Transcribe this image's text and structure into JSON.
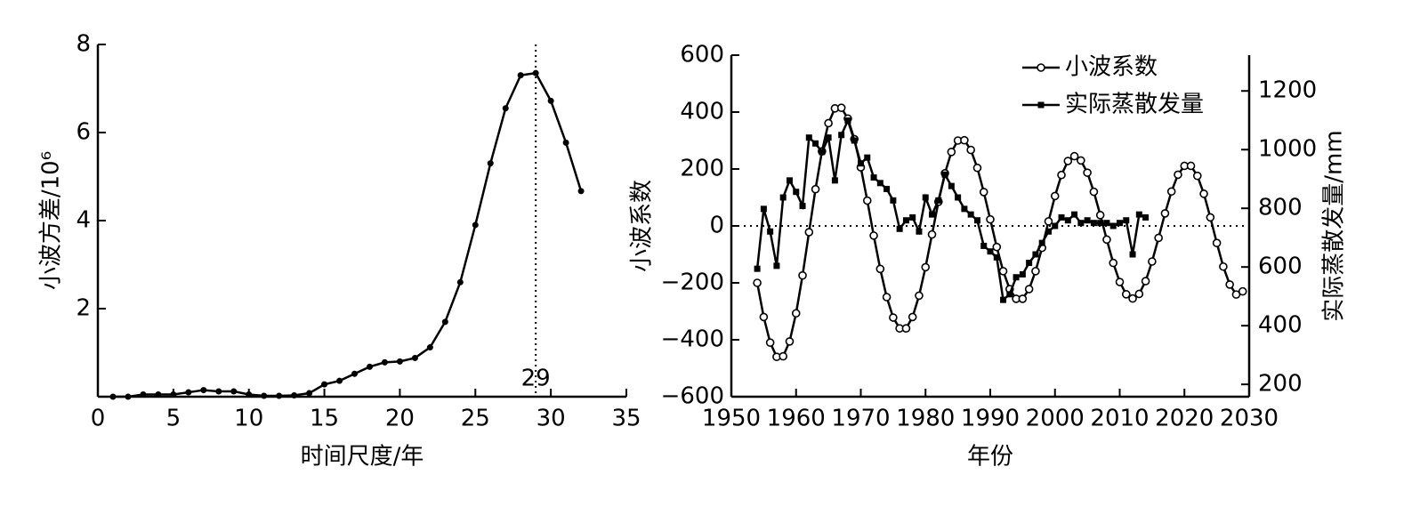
{
  "chart_data": [
    {
      "type": "line",
      "xlabel": "时间尺度/年",
      "ylabel": "小波方差/10⁶",
      "x": [
        1,
        2,
        3,
        4,
        5,
        6,
        7,
        8,
        9,
        10,
        11,
        12,
        13,
        14,
        15,
        16,
        17,
        18,
        19,
        20,
        21,
        22,
        23,
        24,
        25,
        26,
        27,
        28,
        29,
        30,
        31,
        32
      ],
      "series": [
        {
          "color": "#000000",
          "marker": "dot",
          "values": [
            0.0,
            0.0,
            0.05,
            0.05,
            0.05,
            0.1,
            0.15,
            0.12,
            0.12,
            0.05,
            0.02,
            0.02,
            0.03,
            0.08,
            0.28,
            0.36,
            0.52,
            0.68,
            0.78,
            0.8,
            0.88,
            1.12,
            1.7,
            2.6,
            3.9,
            5.3,
            6.55,
            7.3,
            7.35,
            6.72,
            5.77,
            4.67
          ]
        }
      ],
      "xlim": [
        0,
        35
      ],
      "xticks": [
        0,
        5,
        10,
        15,
        20,
        25,
        30,
        35
      ],
      "ylim": [
        0,
        8
      ],
      "yticks": [
        2,
        4,
        6,
        8
      ],
      "vline": 29,
      "vline_label": "29"
    },
    {
      "type": "line",
      "xlabel": "年份",
      "ylabel": "小波系数",
      "y2label": "实际蒸散发量/mm",
      "x": [
        1954,
        1955,
        1956,
        1957,
        1958,
        1959,
        1960,
        1961,
        1962,
        1963,
        1964,
        1965,
        1966,
        1967,
        1968,
        1969,
        1970,
        1971,
        1972,
        1973,
        1974,
        1975,
        1976,
        1977,
        1978,
        1979,
        1980,
        1981,
        1982,
        1983,
        1984,
        1985,
        1986,
        1987,
        1988,
        1989,
        1990,
        1991,
        1992,
        1993,
        1994,
        1995,
        1996,
        1997,
        1998,
        1999,
        2000,
        2001,
        2002,
        2003,
        2004,
        2005,
        2006,
        2007,
        2008,
        2009,
        2010,
        2011,
        2012,
        2013,
        2014,
        2015,
        2016,
        2017,
        2018,
        2019,
        2020,
        2021,
        2022,
        2023,
        2024,
        2025,
        2026,
        2027,
        2028,
        2029
      ],
      "series": [
        {
          "name": "小波系数",
          "color": "#000000",
          "marker": "circle",
          "values": [
            -200,
            -320,
            -410,
            -460,
            -458,
            -406,
            -307,
            -174,
            -22,
            129,
            262,
            361,
            413,
            415,
            377,
            305,
            206,
            89,
            -34,
            -151,
            -250,
            -322,
            -360,
            -360,
            -320,
            -245,
            -145,
            -30,
            85,
            185,
            260,
            300,
            301,
            267,
            204,
            119,
            23,
            -74,
            -159,
            -222,
            -256,
            -256,
            -222,
            -159,
            -77,
            16,
            105,
            179,
            228,
            245,
            230,
            187,
            120,
            38,
            -48,
            -130,
            -197,
            -240,
            -255,
            -239,
            -194,
            -125,
            -42,
            44,
            121,
            180,
            211,
            211,
            176,
            113,
            30,
            -60,
            -143,
            -206,
            -241,
            -230
          ]
        },
        {
          "name": "实际蒸散发量",
          "color": "#000000",
          "marker": "square",
          "axis": "y2",
          "values": [
            594,
            798,
            721,
            604,
            837,
            895,
            856,
            808,
            1041,
            1021,
            992,
            1041,
            895,
            1050,
            1099,
            1031,
            953,
            973,
            905,
            886,
            866,
            827,
            730,
            759,
            769,
            721,
            837,
            779,
            827,
            915,
            876,
            837,
            798,
            779,
            759,
            672,
            653,
            633,
            488,
            507,
            565,
            575,
            614,
            643,
            682,
            721,
            740,
            769,
            759,
            779,
            750,
            759,
            750,
            750,
            750,
            740,
            750,
            759,
            643,
            779,
            769,
            null,
            null,
            null,
            null,
            null,
            null,
            null,
            null,
            null,
            null,
            null,
            null,
            null,
            null,
            null
          ]
        }
      ],
      "xlim": [
        1950,
        2030
      ],
      "xticks": [
        1950,
        1960,
        1970,
        1980,
        1990,
        2000,
        2010,
        2020,
        2030
      ],
      "ylim": [
        -600,
        600
      ],
      "yticks": [
        {
          "value": -600,
          "label": "−600"
        },
        {
          "value": -400,
          "label": "−400"
        },
        {
          "value": -200,
          "label": "−200"
        },
        0,
        200,
        400,
        600
      ],
      "y2lim": [
        158,
        1322
      ],
      "y2ticks": [
        200,
        400,
        600,
        800,
        1000,
        1200
      ],
      "hline": 0,
      "legend": "upper right"
    }
  ]
}
